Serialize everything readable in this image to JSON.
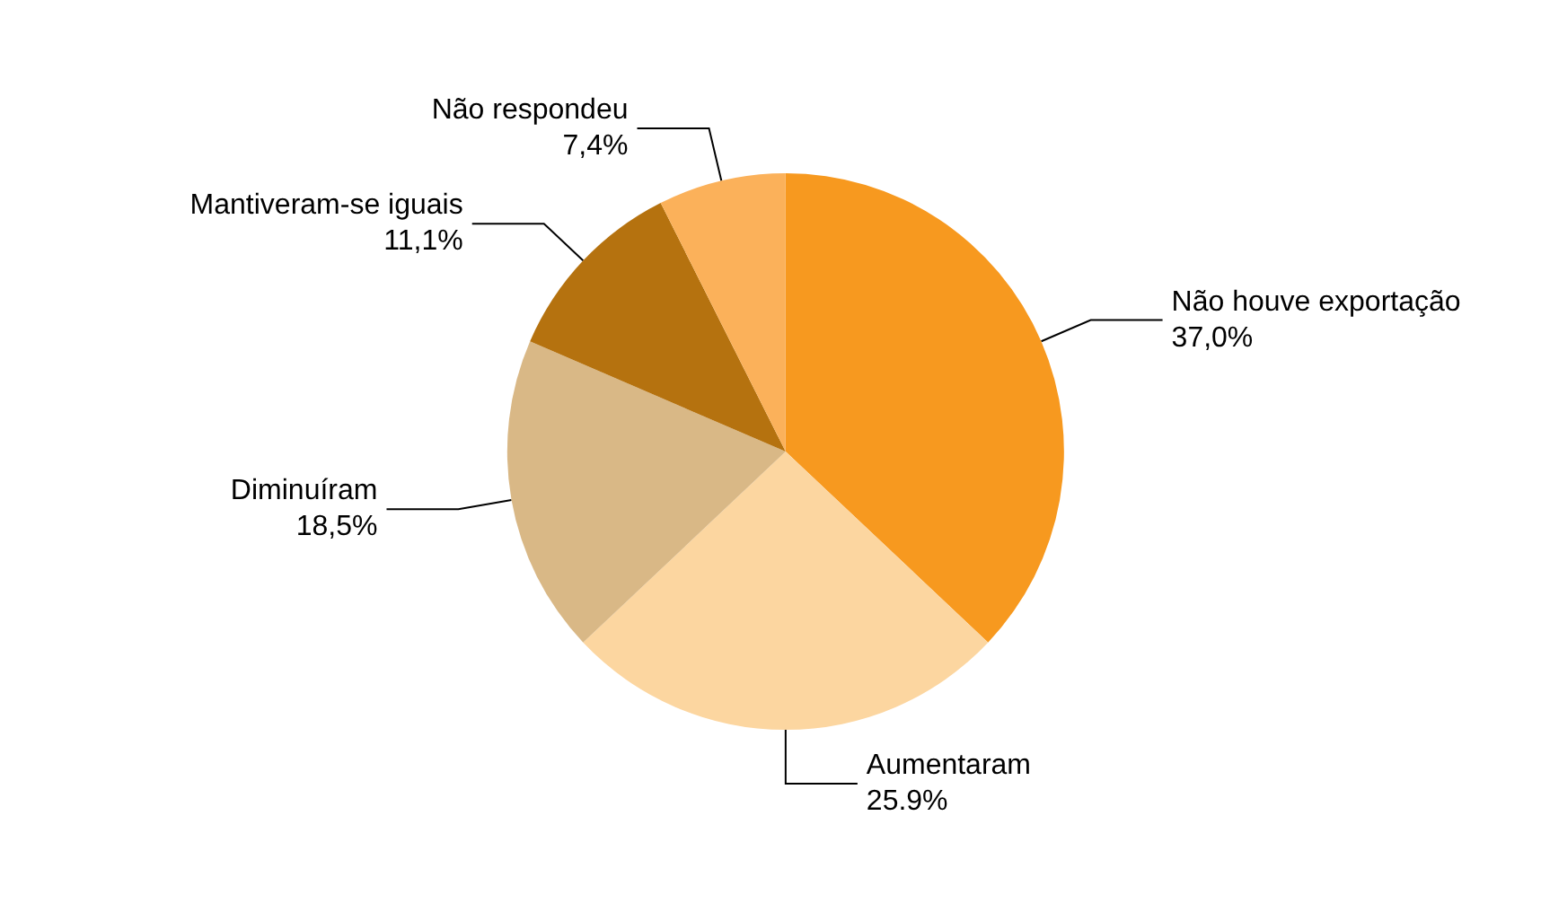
{
  "chart_data": {
    "type": "pie",
    "categories": [
      "Não houve exportação",
      "Aumentaram",
      "Diminuíram",
      "Mantiveram-se iguais",
      "Não respondeu"
    ],
    "values": [
      37.0,
      25.9,
      18.5,
      11.1,
      7.4
    ],
    "value_labels": [
      "37,0%",
      "25.9%",
      "18,5%",
      "11,1%",
      "7,4%"
    ],
    "colors": [
      "#f7991f",
      "#fcd6a0",
      "#d9b886",
      "#b5720f",
      "#fbb15a"
    ],
    "legend": false
  }
}
